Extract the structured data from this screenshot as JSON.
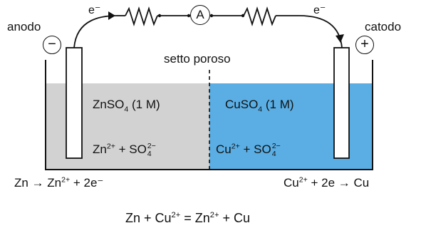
{
  "labels": {
    "anode": "anodo",
    "cathode": "catodo",
    "electron_left": "e⁻",
    "electron_right": "e⁻",
    "ammeter": "A",
    "minus_sign": "−",
    "plus_sign": "+",
    "porous": "setto poroso"
  },
  "left_solution": {
    "name_a": "ZnSO",
    "name_sub": "4",
    "name_b": " (1 M)",
    "ion1": "Zn",
    "ion1_charge": "2+",
    "plus": " + SO",
    "ion2_charge": "2−",
    "ion2_sub": "4",
    "color": "#d2d2d2"
  },
  "right_solution": {
    "name_a": "CuSO",
    "name_sub": "4",
    "name_b": " (1 M)",
    "ion1": "Cu",
    "ion1_charge": "2+",
    "plus": " + SO",
    "ion2_charge": "2−",
    "ion2_sub": "4",
    "color": "#5aaee4"
  },
  "reactions": {
    "left_a": "Zn → Zn",
    "left_charge": "2+",
    "left_b": " + 2e⁻",
    "right_a": "Cu",
    "right_charge": "2+",
    "right_b": " + 2e  → Cu",
    "overall_a": "Zn + Cu",
    "overall_charge1": "2+",
    "overall_b": " = Zn",
    "overall_charge2": "2+",
    "overall_c": " + Cu"
  }
}
